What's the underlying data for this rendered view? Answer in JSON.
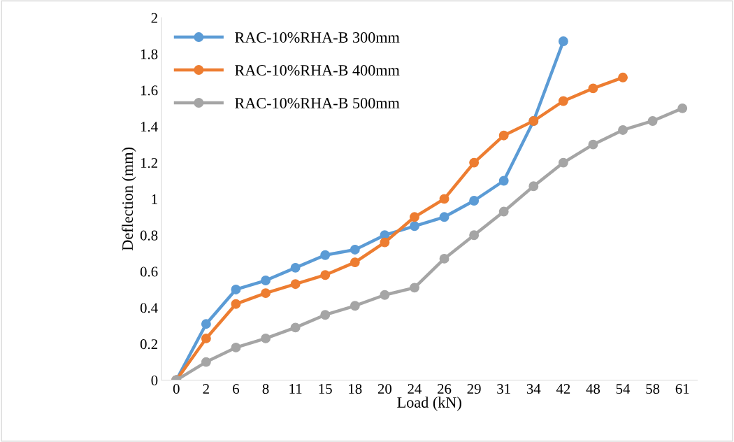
{
  "chart_data": {
    "type": "line",
    "xlabel": "Load (kN)",
    "ylabel": "Deflection (mm)",
    "categories": [
      "0",
      "2",
      "6",
      "8",
      "11",
      "15",
      "18",
      "20",
      "24",
      "26",
      "29",
      "31",
      "34",
      "42",
      "48",
      "54",
      "58",
      "61"
    ],
    "series": [
      {
        "name": "RAC-10%RHA-B 300mm",
        "color": "#5b9bd5",
        "values": [
          0,
          0.31,
          0.5,
          0.55,
          0.62,
          0.69,
          0.72,
          0.8,
          0.85,
          0.9,
          0.99,
          1.1,
          1.43,
          1.87,
          null,
          null,
          null,
          null
        ]
      },
      {
        "name": "RAC-10%RHA-B 400mm",
        "color": "#ed7d31",
        "values": [
          0,
          0.23,
          0.42,
          0.48,
          0.53,
          0.58,
          0.65,
          0.76,
          0.9,
          1.0,
          1.2,
          1.35,
          1.43,
          1.54,
          1.61,
          1.67,
          null,
          null
        ]
      },
      {
        "name": "RAC-10%RHA-B 500mm",
        "color": "#a5a5a5",
        "values": [
          0,
          0.1,
          0.18,
          0.23,
          0.29,
          0.36,
          0.41,
          0.47,
          0.51,
          0.67,
          0.8,
          0.93,
          1.07,
          1.2,
          1.3,
          1.38,
          1.43,
          1.5
        ]
      }
    ],
    "ylim": [
      0,
      2
    ],
    "yticks": [
      0,
      0.2,
      0.4,
      0.6,
      0.8,
      1,
      1.2,
      1.4,
      1.6,
      1.8,
      2
    ],
    "grid": false,
    "legend": "top left",
    "marker": "circle",
    "line_style": "solid"
  }
}
